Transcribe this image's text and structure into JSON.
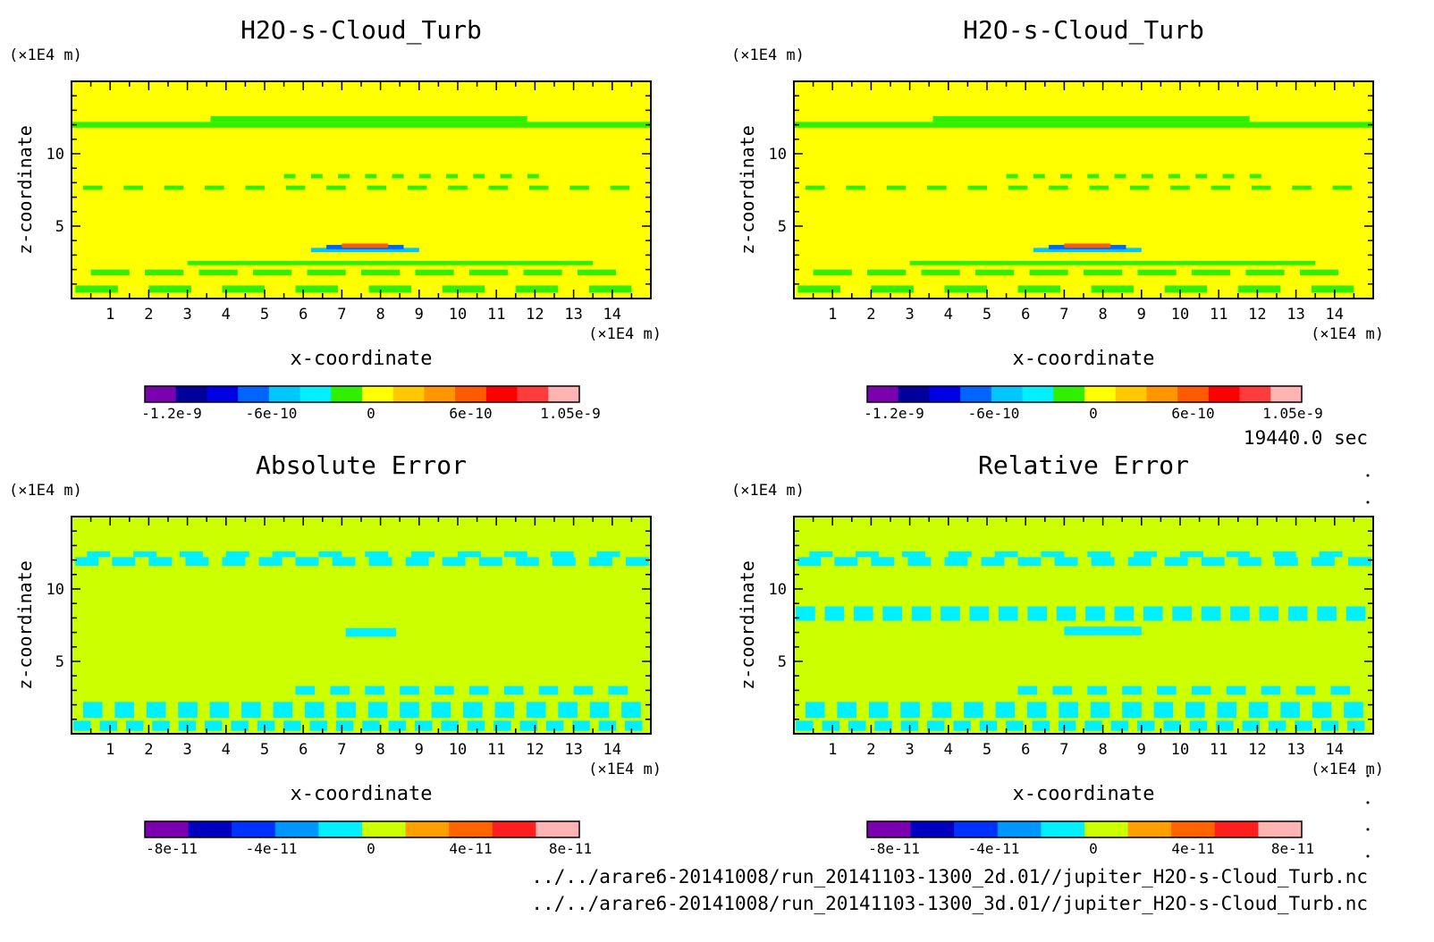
{
  "chart_data": [
    {
      "type": "heatmap",
      "title": "H2O-s-Cloud_Turb",
      "xlabel": "x-coordinate",
      "ylabel": "z-coordinate",
      "x_unit": "(×1E4 m)",
      "y_unit": "(×1E4 m)",
      "xlim": [
        0,
        15
      ],
      "ylim": [
        0,
        15
      ],
      "x_ticks": [
        1,
        2,
        3,
        4,
        5,
        6,
        7,
        8,
        9,
        10,
        11,
        12,
        13,
        14
      ],
      "y_ticks": [
        5,
        10
      ],
      "background_color": "#ffff00",
      "colorbar": {
        "colors": [
          "#7a00b0",
          "#00009a",
          "#0000e6",
          "#0064ff",
          "#00c8ff",
          "#00f0ff",
          "#30f000",
          "#ffff00",
          "#ffc800",
          "#ff9600",
          "#ff5a00",
          "#ff0000",
          "#ff3c3c",
          "#ffb4b4"
        ],
        "tick_labels": [
          "-1.2e-9",
          "-6e-10",
          "0",
          "6e-10",
          "1.05e-9"
        ]
      }
    },
    {
      "type": "heatmap",
      "title": "H2O-s-Cloud_Turb",
      "xlabel": "x-coordinate",
      "ylabel": "z-coordinate",
      "x_unit": "(×1E4 m)",
      "y_unit": "(×1E4 m)",
      "xlim": [
        0,
        15
      ],
      "ylim": [
        0,
        15
      ],
      "x_ticks": [
        1,
        2,
        3,
        4,
        5,
        6,
        7,
        8,
        9,
        10,
        11,
        12,
        13,
        14
      ],
      "y_ticks": [
        5,
        10
      ],
      "background_color": "#ffff00",
      "colorbar": {
        "colors": [
          "#7a00b0",
          "#00009a",
          "#0000e6",
          "#0064ff",
          "#00c8ff",
          "#00f0ff",
          "#30f000",
          "#ffff00",
          "#ffc800",
          "#ff9600",
          "#ff5a00",
          "#ff0000",
          "#ff3c3c",
          "#ffb4b4"
        ],
        "tick_labels": [
          "-1.2e-9",
          "-6e-10",
          "0",
          "6e-10",
          "1.05e-9"
        ]
      }
    },
    {
      "type": "heatmap",
      "title": "Absolute Error",
      "xlabel": "x-coordinate",
      "ylabel": "z-coordinate",
      "x_unit": "(×1E4 m)",
      "y_unit": "(×1E4 m)",
      "xlim": [
        0,
        15
      ],
      "ylim": [
        0,
        15
      ],
      "x_ticks": [
        1,
        2,
        3,
        4,
        5,
        6,
        7,
        8,
        9,
        10,
        11,
        12,
        13,
        14
      ],
      "y_ticks": [
        5,
        10
      ],
      "background_color": "#ccff00",
      "colorbar": {
        "colors": [
          "#7a00b0",
          "#0000c0",
          "#0032ff",
          "#0096ff",
          "#00f0ff",
          "#ccff00",
          "#ffa000",
          "#ff6400",
          "#ff1e1e",
          "#ffb4b4"
        ],
        "tick_labels": [
          "-8e-11",
          "-4e-11",
          "0",
          "4e-11",
          "8e-11"
        ]
      }
    },
    {
      "type": "heatmap",
      "title": "Relative Error",
      "xlabel": "x-coordinate",
      "ylabel": "z-coordinate",
      "x_unit": "(×1E4 m)",
      "y_unit": "(×1E4 m)",
      "xlim": [
        0,
        15
      ],
      "ylim": [
        0,
        15
      ],
      "x_ticks": [
        1,
        2,
        3,
        4,
        5,
        6,
        7,
        8,
        9,
        10,
        11,
        12,
        13,
        14
      ],
      "y_ticks": [
        5,
        10
      ],
      "background_color": "#ccff00",
      "colorbar": {
        "colors": [
          "#7a00b0",
          "#0000c0",
          "#0032ff",
          "#0096ff",
          "#00f0ff",
          "#ccff00",
          "#ffa000",
          "#ff6400",
          "#ff1e1e",
          "#ffb4b4"
        ],
        "tick_labels": [
          "-8e-11",
          "-4e-11",
          "0",
          "4e-11",
          "8e-11"
        ]
      }
    }
  ],
  "time_label": "19440.0 sec",
  "file_paths": [
    "../../arare6-20141008/run_20141103-1300_2d.01//jupiter_H2O-s-Cloud_Turb.nc",
    "../../arare6-20141008/run_20141103-1300_3d.01//jupiter_H2O-s-Cloud_Turb.nc"
  ]
}
